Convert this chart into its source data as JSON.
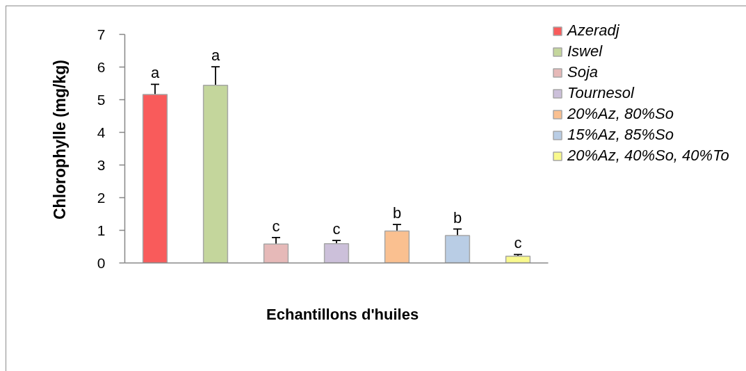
{
  "chart_data": {
    "type": "bar",
    "xlabel": "Echantillons d'huiles",
    "ylabel": "Chlorophylle (mg/kg)",
    "categories": [
      null,
      null,
      null,
      null,
      null,
      null,
      null
    ],
    "series": [
      {
        "name": "Azeradj",
        "color": "#f95b5b",
        "values": [
          5.16,
          null,
          null,
          null,
          null,
          null,
          null
        ],
        "errors": [
          0.31,
          null,
          null,
          null,
          null,
          null,
          null
        ],
        "value_labels": [
          "a",
          null,
          null,
          null,
          null,
          null,
          null
        ]
      },
      {
        "name": "Iswel",
        "color": "#c4d69c",
        "values": [
          null,
          5.44,
          null,
          null,
          null,
          null,
          null
        ],
        "errors": [
          null,
          0.57,
          null,
          null,
          null,
          null,
          null
        ],
        "value_labels": [
          null,
          "a",
          null,
          null,
          null,
          null,
          null
        ]
      },
      {
        "name": "Soja",
        "color": "#e6b9b8",
        "values": [
          null,
          null,
          0.58,
          null,
          null,
          null,
          null
        ],
        "errors": [
          null,
          null,
          0.2,
          null,
          null,
          null,
          null
        ],
        "value_labels": [
          null,
          null,
          "c",
          null,
          null,
          null,
          null
        ]
      },
      {
        "name": "Tournesol",
        "color": "#ccc0da",
        "values": [
          null,
          null,
          null,
          0.59,
          null,
          null,
          null
        ],
        "errors": [
          null,
          null,
          null,
          0.1,
          null,
          null,
          null
        ],
        "value_labels": [
          null,
          null,
          null,
          "c",
          null,
          null,
          null
        ]
      },
      {
        "name": "20%Az, 80%So",
        "color": "#fac090",
        "values": [
          null,
          null,
          null,
          null,
          0.98,
          null,
          null
        ],
        "errors": [
          null,
          null,
          null,
          null,
          0.2,
          null,
          null
        ],
        "value_labels": [
          null,
          null,
          null,
          null,
          "b",
          null,
          null
        ]
      },
      {
        "name": "15%Az, 85%So",
        "color": "#b9cde5",
        "values": [
          null,
          null,
          null,
          null,
          null,
          0.84,
          null
        ],
        "errors": [
          null,
          null,
          null,
          null,
          null,
          0.2,
          null
        ],
        "value_labels": [
          null,
          null,
          null,
          null,
          null,
          "b",
          null
        ]
      },
      {
        "name": "20%Az, 40%So, 40%To",
        "color": "#f9f98d",
        "values": [
          null,
          null,
          null,
          null,
          null,
          null,
          0.21
        ],
        "errors": [
          null,
          null,
          null,
          null,
          null,
          null,
          0.05
        ],
        "value_labels": [
          null,
          null,
          null,
          null,
          null,
          null,
          "c"
        ]
      }
    ],
    "ylim": [
      0,
      7
    ],
    "yticks": [
      0,
      1,
      2,
      3,
      4,
      5,
      6,
      7
    ],
    "legend": "top right"
  }
}
